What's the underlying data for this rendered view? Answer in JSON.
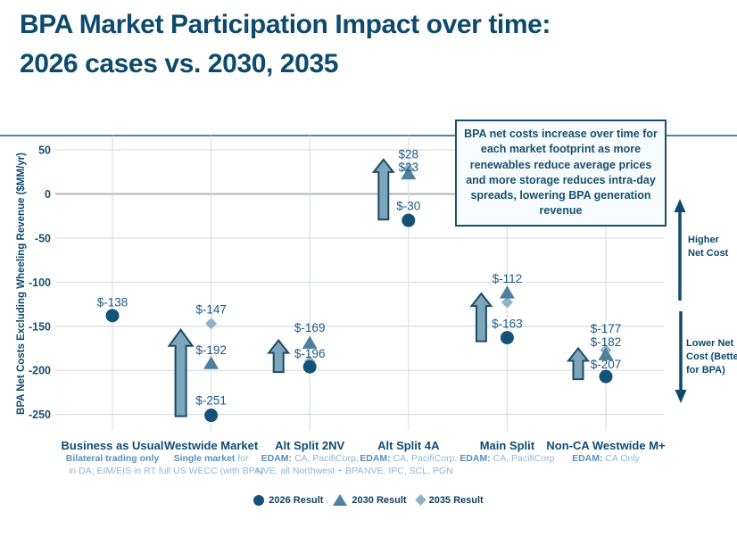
{
  "title": {
    "line1": "BPA Market Participation Impact over time:",
    "line2": "2026 cases vs. 2030, 2035"
  },
  "annotation": "BPA net costs increase over time for each market footprint as more renewables reduce average prices and more storage reduces intra-day spreads, lowering BPA generation revenue",
  "side_labels": {
    "higher": "Higher Net Cost",
    "lower": "Lower Net Cost (Better for BPA)"
  },
  "colors": {
    "navy": "#0e4a6b",
    "tick": "#155074",
    "value_label": "#1d5a85",
    "gridline": "#d9dde0",
    "zero_line": "#a3a8ac",
    "vgrid": "#dcdfe2",
    "top_rule": "#4c87a5",
    "arrow_fill": "#7ea6bb",
    "arrow_stroke": "#1d4a63"
  },
  "chart_data": {
    "type": "scatter",
    "title": "BPA Market Participation Impact over time: 2026 cases vs. 2030, 2035",
    "xlabel": "",
    "ylabel": "BPA Net Costs Excluding Wheeling Revenue ($MM/yr)",
    "ylim": [
      -270,
      65
    ],
    "yticks": [
      50,
      0,
      -50,
      -100,
      -150,
      -200,
      -250
    ],
    "grid": true,
    "legend_position": "bottom",
    "series_meta": [
      {
        "name": "2026 Result",
        "marker": "circle",
        "color": "#15527a"
      },
      {
        "name": "2030 Result",
        "marker": "triangle",
        "color": "#4e809c"
      },
      {
        "name": "2035 Result",
        "marker": "diamond",
        "color": "#8fb2c8"
      }
    ],
    "categories": [
      {
        "label": "Business as Usual",
        "desc_bold": "Bilateral trading only",
        "desc_rest": "",
        "desc_line2": "in DA; EIM/EIS in RT",
        "points": [
          {
            "series": "2026 Result",
            "value": -138,
            "label": "$-138",
            "label_v": -123
          }
        ]
      },
      {
        "label": "Westwide Market",
        "desc_bold": "Single market",
        "desc_rest": " for",
        "desc_line2": "full US WECC (with BPA)",
        "arrow": {
          "from": -252,
          "to": -154,
          "dx": -34,
          "size": "large"
        },
        "points": [
          {
            "series": "2035 Result",
            "value": -147,
            "label": "$-147",
            "label_v": -131
          },
          {
            "series": "2030 Result",
            "value": -192,
            "label": "$-192",
            "label_v": -177
          },
          {
            "series": "2026 Result",
            "value": -251,
            "label": "$-251",
            "label_v": -234
          }
        ]
      },
      {
        "label": "Alt Split 2NV",
        "desc_bold": "EDAM:",
        "desc_rest": " CA, PacifiCorp,",
        "desc_line2": "NVE, all Northwest + BPA",
        "arrow": {
          "from": -202,
          "to": -166,
          "dx": -35,
          "size": "small"
        },
        "points": [
          {
            "series": "2030 Result",
            "value": -169,
            "label": "$-169",
            "label_v": -152
          },
          {
            "series": "2035 Result",
            "value": -190,
            "label": null
          },
          {
            "series": "2026 Result",
            "value": -196,
            "label": "$-196",
            "label_v": -181
          }
        ]
      },
      {
        "label": "Alt Split 4A",
        "desc_bold": "EDAM:",
        "desc_rest": " CA, PacifiCorp,",
        "desc_line2": "NVE, IPC, SCL, PGN",
        "arrow": {
          "from": -29,
          "to": 39,
          "dx": -28,
          "size": "small"
        },
        "points": [
          {
            "series": "2035 Result",
            "value": 28,
            "label": "$28",
            "label_v": 45
          },
          {
            "series": "2030 Result",
            "value": 23,
            "label": "$23",
            "label_v": 30
          },
          {
            "series": "2026 Result",
            "value": -30,
            "label": "$-30",
            "label_v": -14
          }
        ]
      },
      {
        "label": "Main Split",
        "desc_bold": "EDAM:",
        "desc_rest": " CA, PacifiCorp",
        "desc_line2": "",
        "arrow": {
          "from": -167,
          "to": -113,
          "dx": -29,
          "size": "small"
        },
        "points": [
          {
            "series": "2030 Result",
            "value": -112,
            "label": "$-112",
            "label_v": -96
          },
          {
            "series": "2035 Result",
            "value": -123,
            "label": null
          },
          {
            "series": "2026 Result",
            "value": -163,
            "label": "$-163",
            "label_v": -147
          }
        ]
      },
      {
        "label": "Non-CA Westwide M+",
        "desc_bold": "EDAM:",
        "desc_rest": " CA Only",
        "desc_line2": "",
        "arrow": {
          "from": -210,
          "to": -175,
          "dx": -31,
          "size": "small"
        },
        "points": [
          {
            "series": "2035 Result",
            "value": -177,
            "label": "$-177",
            "label_v": -153
          },
          {
            "series": "2030 Result",
            "value": -182,
            "label": "$-182",
            "label_v": -168
          },
          {
            "series": "2026 Result",
            "value": -207,
            "label": "$-207",
            "label_v": -193
          }
        ]
      }
    ]
  }
}
